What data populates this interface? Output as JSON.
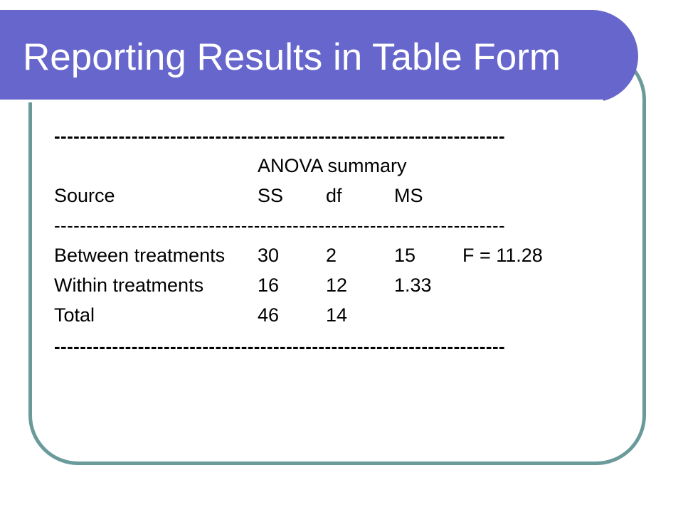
{
  "slide": {
    "title": "Reporting Results in Table Form"
  },
  "table": {
    "rule": "----------------------------------------------------------------------",
    "caption": "ANOVA summary",
    "headers": [
      "Source",
      "SS",
      "df",
      "MS"
    ],
    "rows": [
      {
        "source": "Between treatments",
        "ss": "30",
        "df": "2",
        "ms": "15",
        "f": "F = 11.28"
      },
      {
        "source": "Within treatments",
        "ss": "16",
        "df": "12",
        "ms": "1.33",
        "f": ""
      },
      {
        "source": "Total",
        "ss": "46",
        "df": "14",
        "ms": "",
        "f": ""
      }
    ]
  },
  "colors": {
    "banner": "#6666cc",
    "frame": "#6b9a9a",
    "title_text": "#ffffff"
  }
}
